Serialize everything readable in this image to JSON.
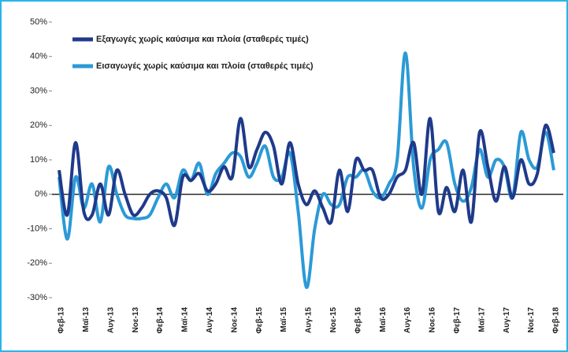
{
  "chart_data": {
    "type": "line",
    "categories": [
      "Φεβ-13",
      null,
      null,
      "Μαϊ-13",
      null,
      null,
      "Αυγ-13",
      null,
      null,
      "Νοε-13",
      null,
      null,
      "Φεβ-14",
      null,
      null,
      "Μαϊ-14",
      null,
      null,
      "Αυγ-14",
      null,
      null,
      "Νοε-14",
      null,
      null,
      "Φεβ-15",
      null,
      null,
      "Μαϊ-15",
      null,
      null,
      "Αυγ-15",
      null,
      null,
      "Νοε-15",
      null,
      null,
      "Φεβ-16",
      null,
      null,
      "Μαϊ-16",
      null,
      null,
      "Αυγ-16",
      null,
      null,
      "Νοε-16",
      null,
      null,
      "Φεβ-17",
      null,
      null,
      "Μαϊ-17",
      null,
      null,
      "Αυγ-17",
      null,
      null,
      "Νοε-17",
      null,
      null,
      "Φεβ-18"
    ],
    "series": [
      {
        "name": "Εξαγωγές χωρίς καύσιμα και πλοία (σταθερές τιμές)",
        "color": "#1f3a8a",
        "values": [
          7,
          -6,
          15,
          -5,
          -6,
          3,
          -6,
          7,
          0,
          -6,
          -4,
          0,
          1,
          -1,
          -9,
          5,
          4,
          6,
          1,
          3,
          8,
          5,
          22,
          8,
          13,
          18,
          14,
          3,
          15,
          3,
          -3,
          1,
          -4,
          -8,
          7,
          -5,
          10,
          7,
          7,
          -1,
          0,
          5,
          7,
          15,
          0,
          22,
          -5,
          2,
          -5,
          7,
          -8,
          18,
          8,
          -2,
          8,
          -1,
          10,
          3,
          6,
          20,
          12
        ]
      },
      {
        "name": "Εισαγωγές χωρίς καύσιμα και πλοία (σταθερές τιμές)",
        "color": "#2b9ad6",
        "values": [
          5,
          -13,
          5,
          -4,
          3,
          -8,
          8,
          0,
          -6,
          -7,
          -7,
          -6,
          -1,
          3,
          -1,
          7,
          4,
          9,
          0,
          6,
          9,
          12,
          11,
          5,
          9,
          14,
          5,
          5,
          12,
          -5,
          -27,
          -10,
          0,
          -3,
          -3,
          5,
          5,
          7,
          1,
          -1,
          3,
          10,
          41,
          8,
          -4,
          10,
          13,
          15,
          3,
          -2,
          2,
          13,
          5,
          10,
          8,
          -1,
          18,
          10,
          8,
          18,
          7
        ]
      }
    ],
    "ylim": [
      -30,
      50
    ],
    "yticks": [
      {
        "value": -30,
        "label": "-30%"
      },
      {
        "value": -20,
        "label": "-20%"
      },
      {
        "value": -10,
        "label": "-10%"
      },
      {
        "value": 0,
        "label": "0%"
      },
      {
        "value": 10,
        "label": "10%"
      },
      {
        "value": 20,
        "label": "20%"
      },
      {
        "value": 30,
        "label": "30%"
      },
      {
        "value": 40,
        "label": "40%"
      },
      {
        "value": 50,
        "label": "50%"
      }
    ],
    "legend": "top-left"
  }
}
